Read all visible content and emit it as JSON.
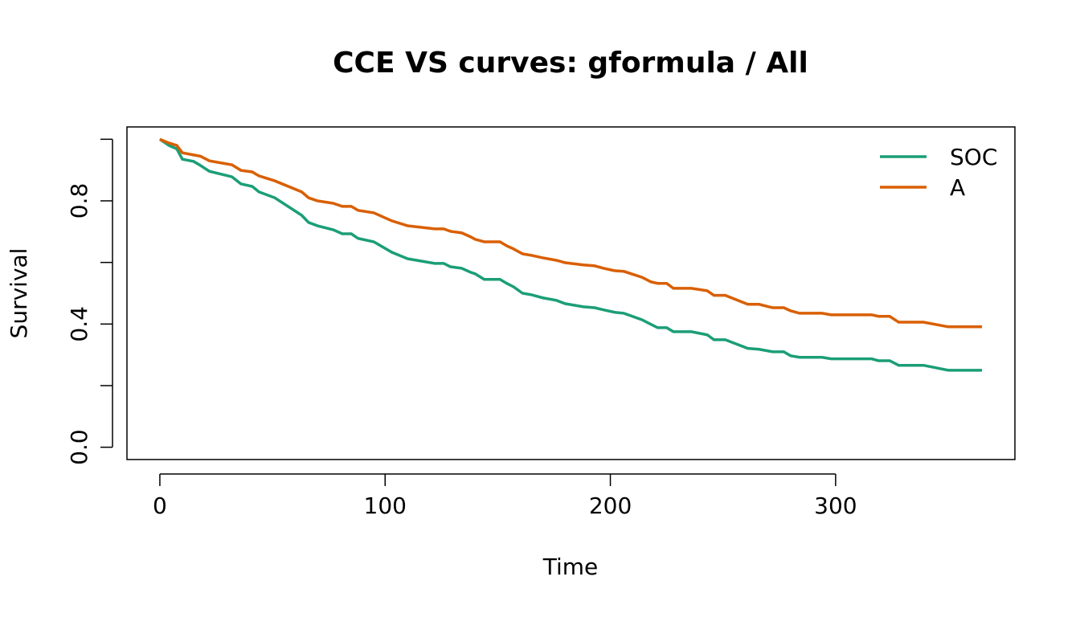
{
  "chart_data": {
    "type": "line",
    "title": "CCE VS curves: gformula / All",
    "xlabel": "Time",
    "ylabel": "Survival",
    "x": [
      0,
      4,
      7.5,
      10,
      15,
      18,
      22,
      32,
      36,
      41,
      44,
      51,
      63,
      66,
      70,
      77,
      81,
      85,
      88,
      95,
      103,
      110,
      122,
      126,
      129,
      134,
      138,
      140,
      144,
      151,
      154,
      157,
      161,
      165,
      170,
      176,
      180,
      188,
      193,
      197,
      202,
      206,
      214,
      218,
      221,
      225,
      228,
      236,
      243,
      246,
      251,
      261,
      266,
      272,
      277,
      280,
      284,
      294,
      298,
      316,
      319,
      324,
      328,
      339,
      350,
      365
    ],
    "series": [
      {
        "name": "SOC",
        "color": "#1b9e77",
        "values": [
          1.0,
          0.98,
          0.969,
          0.935,
          0.928,
          0.915,
          0.896,
          0.878,
          0.855,
          0.847,
          0.829,
          0.81,
          0.753,
          0.73,
          0.719,
          0.706,
          0.693,
          0.693,
          0.678,
          0.667,
          0.633,
          0.612,
          0.597,
          0.597,
          0.586,
          0.581,
          0.568,
          0.563,
          0.545,
          0.545,
          0.532,
          0.521,
          0.5,
          0.495,
          0.485,
          0.477,
          0.466,
          0.456,
          0.453,
          0.446,
          0.438,
          0.435,
          0.414,
          0.399,
          0.388,
          0.388,
          0.375,
          0.375,
          0.365,
          0.349,
          0.349,
          0.321,
          0.318,
          0.31,
          0.31,
          0.297,
          0.292,
          0.292,
          0.287,
          0.287,
          0.281,
          0.281,
          0.266,
          0.266,
          0.25,
          0.25
        ]
      },
      {
        "name": "A",
        "color": "#d95f02",
        "values": [
          1.0,
          0.988,
          0.98,
          0.956,
          0.949,
          0.945,
          0.93,
          0.917,
          0.899,
          0.894,
          0.881,
          0.865,
          0.829,
          0.81,
          0.8,
          0.792,
          0.782,
          0.782,
          0.769,
          0.761,
          0.735,
          0.719,
          0.709,
          0.709,
          0.701,
          0.696,
          0.683,
          0.675,
          0.667,
          0.667,
          0.654,
          0.644,
          0.628,
          0.623,
          0.615,
          0.607,
          0.599,
          0.592,
          0.589,
          0.581,
          0.573,
          0.571,
          0.552,
          0.537,
          0.532,
          0.532,
          0.516,
          0.516,
          0.508,
          0.493,
          0.493,
          0.464,
          0.464,
          0.453,
          0.453,
          0.443,
          0.435,
          0.435,
          0.43,
          0.43,
          0.425,
          0.425,
          0.406,
          0.406,
          0.391,
          0.391
        ]
      }
    ],
    "xlim": [
      -14.6,
      379.6
    ],
    "xticks": [
      0,
      100,
      200,
      300
    ],
    "ylim": [
      -0.04,
      1.04
    ],
    "yticks": [
      {
        "value": 0,
        "label": "0.0"
      },
      {
        "value": 0.4,
        "label": "0.4"
      },
      {
        "value": 0.8,
        "label": "0.8"
      }
    ],
    "yticks_unlabeled": [
      0.2,
      0.6,
      1
    ],
    "grid": false,
    "legend": "topright"
  }
}
